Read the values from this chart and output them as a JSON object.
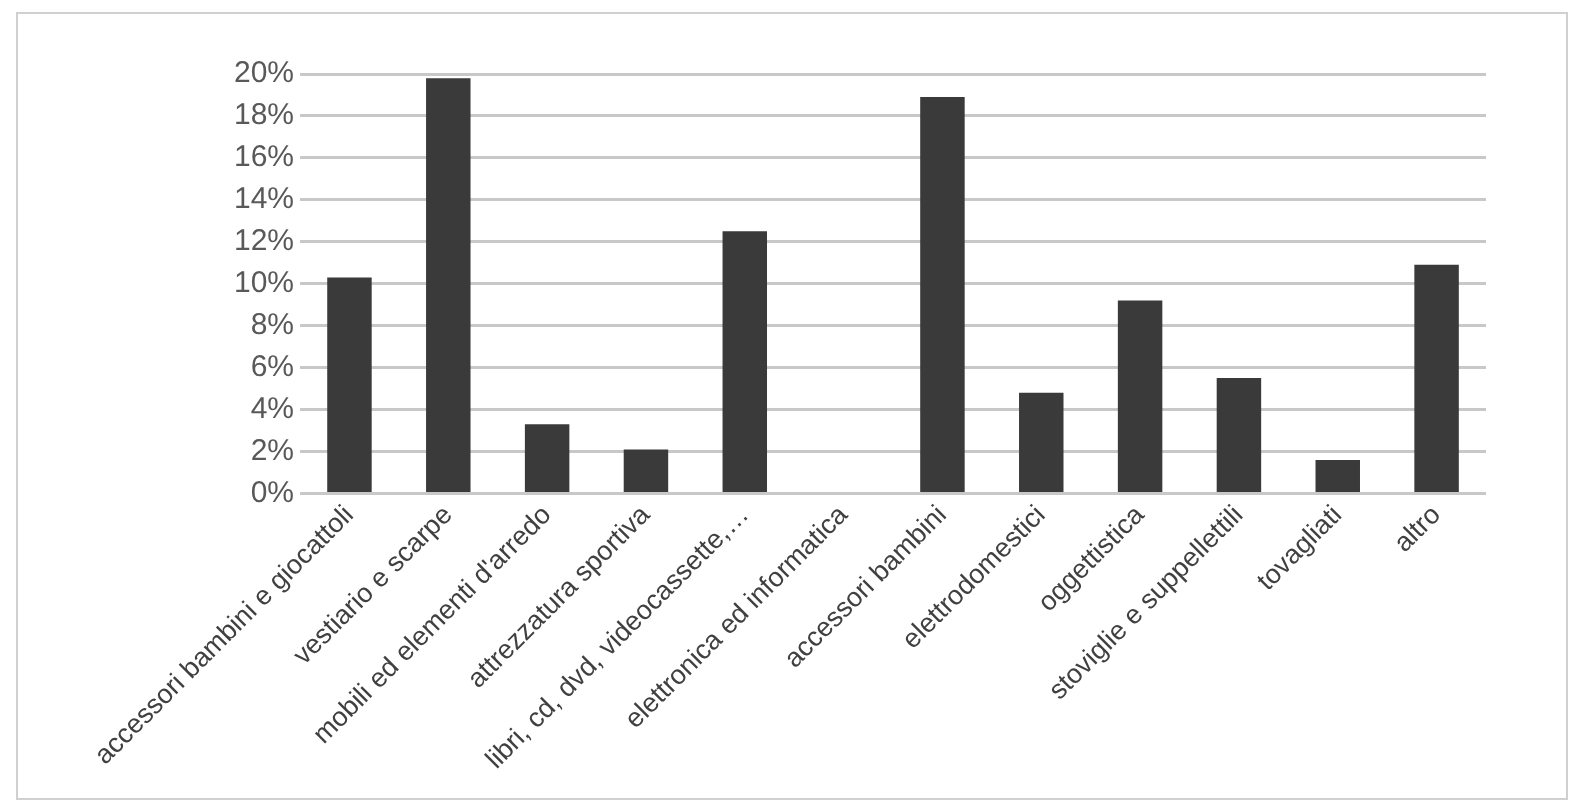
{
  "chart_data": {
    "type": "bar",
    "categories": [
      "accessori bambini e giocattoli",
      "vestiario e scarpe",
      "mobili ed elementi d'arredo",
      "attrezzatura sportiva",
      "libri, cd, dvd, videocassette,…",
      "elettronica ed informatica",
      "accessori bambini",
      "elettrodomestici",
      "oggettistica",
      "stoviglie e suppellettili",
      "tovagliati",
      "altro"
    ],
    "values": [
      10.3,
      19.8,
      3.3,
      2.1,
      12.5,
      0,
      18.9,
      4.8,
      9.2,
      5.5,
      1.6,
      10.9
    ],
    "color": "#3a3a3a",
    "ylim": [
      0,
      20
    ],
    "yticks": [
      {
        "value": 0,
        "label": "0%"
      },
      {
        "value": 2,
        "label": "2%"
      },
      {
        "value": 4,
        "label": "4%"
      },
      {
        "value": 6,
        "label": "6%"
      },
      {
        "value": 8,
        "label": "8%"
      },
      {
        "value": 10,
        "label": "10%"
      },
      {
        "value": 12,
        "label": "12%"
      },
      {
        "value": 14,
        "label": "14%"
      },
      {
        "value": 16,
        "label": "16%"
      },
      {
        "value": 18,
        "label": "18%"
      },
      {
        "value": 20,
        "label": "20%"
      }
    ],
    "grid": "y",
    "legend": false
  }
}
